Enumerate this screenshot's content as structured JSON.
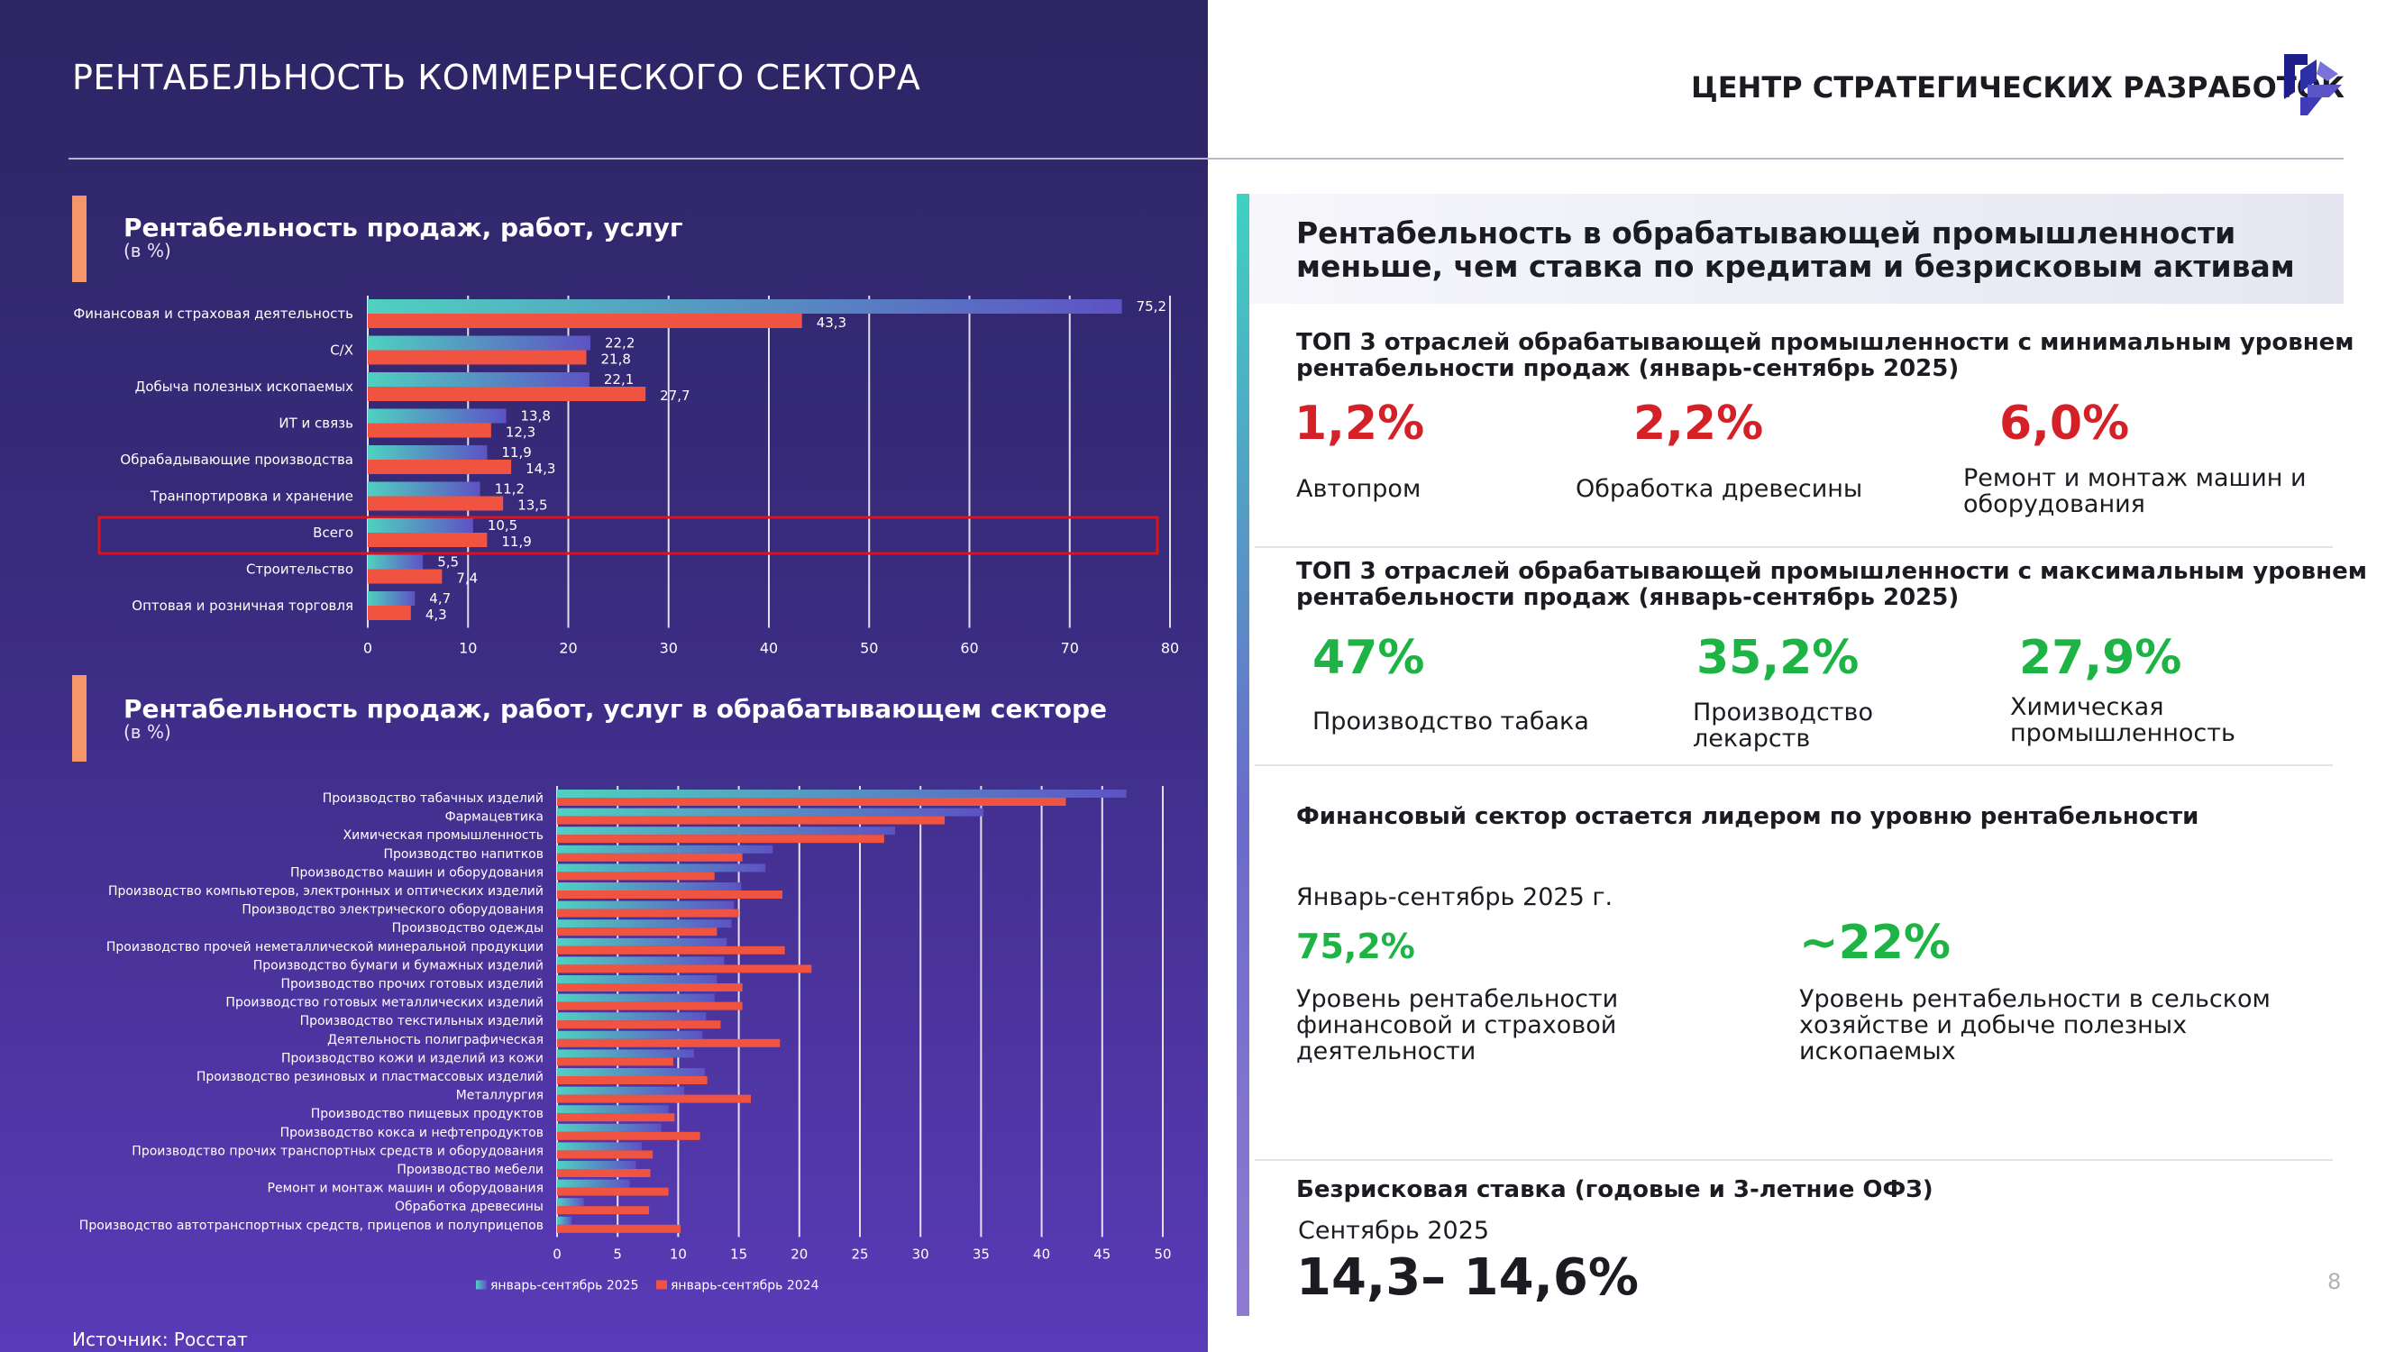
{
  "title": "РЕНТАБЕЛЬНОСТЬ КОММЕРЧЕСКОГО СЕКТОРА",
  "brand": {
    "name": "ЦЕНТР СТРАТЕГИЧЕСКИХ РАЗРАБОТОК",
    "logo_icon": "csr-logo-icon",
    "logo_colors": [
      "#1e1e8a",
      "#5b55c8"
    ]
  },
  "source_note": "Источник: Росстат",
  "page_number": "8",
  "colors": {
    "series_2025": "#5d52c4",
    "series_2024": "#f0533f",
    "teal_accent": "#4fd1c0",
    "highlight_frame": "#d9151b",
    "stat_red": "#d42027",
    "stat_green": "#1db445",
    "section_marker": "#f4956a"
  },
  "chart_data": [
    {
      "type": "bar",
      "orientation": "horizontal",
      "title": "Рентабельность продаж, работ, услуг",
      "subtitle": "(в %)",
      "categories": [
        "Финансовая и страховая деятельность",
        "С/Х",
        "Добыча полезных ископаемых",
        "ИТ и связь",
        "Обрабадывающие производства",
        "Транпортировка и хранение",
        "Всего",
        "Строительство",
        "Оптовая и розничная торговля"
      ],
      "series": [
        {
          "values": [
            75.2,
            22.2,
            22.1,
            13.8,
            11.9,
            11.2,
            10.5,
            5.5,
            4.7
          ]
        },
        {
          "values": [
            43.3,
            21.8,
            27.7,
            12.3,
            14.3,
            13.5,
            11.9,
            7.4,
            4.3
          ]
        }
      ],
      "value_labels": [
        [
          "75,2",
          "22,2",
          "22,1",
          "13,8",
          "11,9",
          "11,2",
          "10,5",
          "5,5",
          "4,7"
        ],
        [
          "43,3",
          "21,8",
          "27,7",
          "12,3",
          "14,3",
          "13,5",
          "11,9",
          "7,4",
          "4,3"
        ]
      ],
      "highlighted_category": "Всего",
      "xlim": [
        0,
        80
      ],
      "xticks": [
        "0",
        "10",
        "20",
        "30",
        "40",
        "50",
        "60",
        "70",
        "80"
      ],
      "grid": true
    },
    {
      "type": "bar",
      "orientation": "horizontal",
      "title": "Рентабельность продаж, работ, услуг в обрабатывающем секторе",
      "subtitle": "(в %)",
      "categories": [
        "Производство табачных изделий",
        "Фармацевтика",
        "Химическая промышленность",
        "Производство напитков",
        "Производство машин и оборудования",
        "Производство компьютеров, электронных и оптических изделий",
        "Производство электрического оборудования",
        "Производство одежды",
        "Производство прочей неметаллической минеральной продукции",
        "Производство бумаги и бумажных изделий",
        "Производство прочих готовых изделий",
        "Производство готовых металлических изделий",
        "Производство текстильных изделий",
        "Деятельность полиграфическая",
        "Производство кожи и изделий из кожи",
        "Производство резиновых и пластмассовых изделий",
        "Металлургия",
        "Производство пищевых продуктов",
        "Производство кокса и нефтепродуктов",
        "Производство прочих транспортных средств и оборудования",
        "Производство мебели",
        "Ремонт и монтаж машин и оборудования",
        "Обработка древесины",
        "Производство автотранспортных средств, прицепов и полуприцепов"
      ],
      "series": [
        {
          "name": "январь-сентябрь 2025",
          "values": [
            47.0,
            35.2,
            27.9,
            17.8,
            17.2,
            15.2,
            14.6,
            14.4,
            14.0,
            13.8,
            13.2,
            13.0,
            12.3,
            12.0,
            11.3,
            12.2,
            10.5,
            9.2,
            8.6,
            7.0,
            6.5,
            6.0,
            2.2,
            1.2
          ]
        },
        {
          "name": "январь-сентябрь 2024",
          "values": [
            42.0,
            32.0,
            27.0,
            15.3,
            13.0,
            18.6,
            15.0,
            13.2,
            18.8,
            21.0,
            15.3,
            15.3,
            13.5,
            18.4,
            9.6,
            12.4,
            16.0,
            9.7,
            11.8,
            7.9,
            7.7,
            9.2,
            7.6,
            10.2
          ]
        }
      ],
      "xlim": [
        0,
        50
      ],
      "xticks": [
        "0",
        "5",
        "10",
        "15",
        "20",
        "25",
        "30",
        "35",
        "40",
        "45",
        "50"
      ],
      "legend_position": "bottom",
      "grid": true
    }
  ],
  "right": {
    "headline": "Рентабельность в обрабатывающей промышленности меньше, чем ставка по кредитам и безрисковым активам",
    "min_heading": "ТОП 3 отраслей обрабатывающей промышленности с минимальным уровнем рентабельности продаж (январь-сентябрь 2025)",
    "min_stats": [
      {
        "value": "1,2%",
        "label": "Автопром"
      },
      {
        "value": "2,2%",
        "label": "Обработка древесины"
      },
      {
        "value": "6,0%",
        "label": "Ремонт и монтаж машин и оборудования"
      }
    ],
    "max_heading": "ТОП 3 отраслей обрабатывающей промышленности с максимальным уровнем рентабельности продаж (январь-сентябрь 2025)",
    "max_stats": [
      {
        "value": "47%",
        "label": "Производство табака"
      },
      {
        "value": "35,2%",
        "label": "Производство лекарств"
      },
      {
        "value": "27,9%",
        "label": "Химическая промышленность"
      }
    ],
    "finance_heading": "Финансовый сектор остается лидером по уровню рентабельности",
    "finance_period": "Январь-сентябрь 2025 г.",
    "finance_stats": [
      {
        "value": "75,2%",
        "label": "Уровень рентабельности финансовой и страховой деятельности"
      },
      {
        "value": "~22%",
        "label": "Уровень рентабельности в сельском хозяйстве и добыче полезных ископаемых"
      }
    ],
    "rate_heading": "Безрисковая ставка (годовые и 3-летние ОФЗ)",
    "rate_period": "Сентябрь 2025",
    "rate_value": "14,3– 14,6%"
  }
}
